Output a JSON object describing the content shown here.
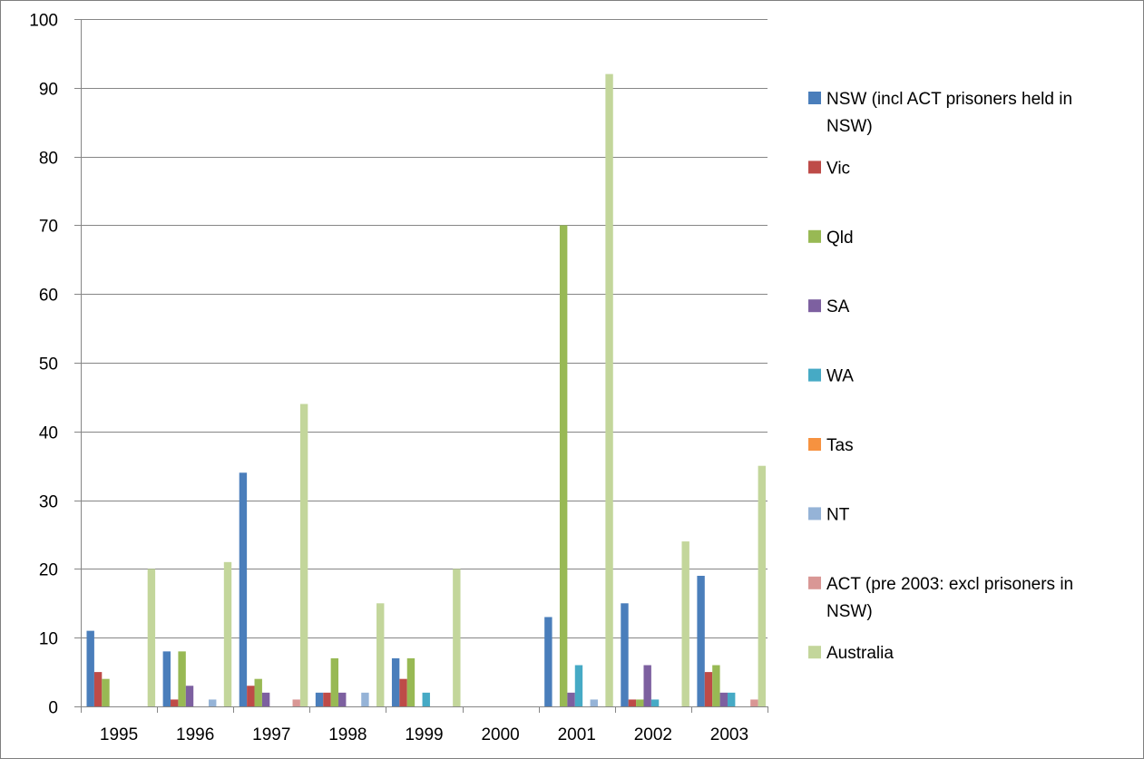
{
  "chart_data": {
    "type": "bar",
    "title": "",
    "xlabel": "",
    "ylabel": "",
    "ylim": [
      0,
      100
    ],
    "yticks": [
      0,
      10,
      20,
      30,
      40,
      50,
      60,
      70,
      80,
      90,
      100
    ],
    "grid": true,
    "legend_position": "right",
    "categories": [
      "1995",
      "1996",
      "1997",
      "1998",
      "1999",
      "2000",
      "2001",
      "2002",
      "2003"
    ],
    "series": [
      {
        "name": "NSW (incl ACT prisoners held in NSW)",
        "color": "#4a7ebb",
        "values": [
          11,
          8,
          34,
          2,
          7,
          0,
          13,
          15,
          19
        ]
      },
      {
        "name": "Vic",
        "color": "#be4b48",
        "values": [
          5,
          1,
          3,
          2,
          4,
          0,
          0,
          1,
          5
        ]
      },
      {
        "name": "Qld",
        "color": "#98b954",
        "values": [
          4,
          8,
          4,
          7,
          7,
          0,
          70,
          1,
          6
        ]
      },
      {
        "name": "SA",
        "color": "#7d60a0",
        "values": [
          0,
          3,
          2,
          2,
          0,
          0,
          2,
          6,
          2
        ]
      },
      {
        "name": "WA",
        "color": "#46aac5",
        "values": [
          0,
          0,
          0,
          0,
          2,
          0,
          6,
          1,
          2
        ]
      },
      {
        "name": "Tas",
        "color": "#f69240",
        "values": [
          0,
          0,
          0,
          0,
          0,
          0,
          0,
          0,
          0
        ]
      },
      {
        "name": "NT",
        "color": "#95b3d7",
        "values": [
          0,
          1,
          0,
          2,
          0,
          0,
          1,
          0,
          0
        ]
      },
      {
        "name": "ACT (pre 2003: excl prisoners in NSW)",
        "color": "#d99795",
        "values": [
          0,
          0,
          1,
          0,
          0,
          0,
          0,
          0,
          1
        ]
      },
      {
        "name": "Australia",
        "color": "#c3d69b",
        "values": [
          20,
          21,
          44,
          15,
          20,
          0,
          92,
          24,
          35
        ]
      }
    ],
    "legend_lines": [
      [
        "NSW (incl ACT prisoners held in",
        "NSW)"
      ],
      [
        "Vic"
      ],
      [
        "Qld"
      ],
      [
        "SA"
      ],
      [
        "WA"
      ],
      [
        "Tas"
      ],
      [
        "NT"
      ],
      [
        "ACT (pre 2003: excl prisoners in",
        "NSW)"
      ],
      [
        "Australia"
      ]
    ]
  }
}
